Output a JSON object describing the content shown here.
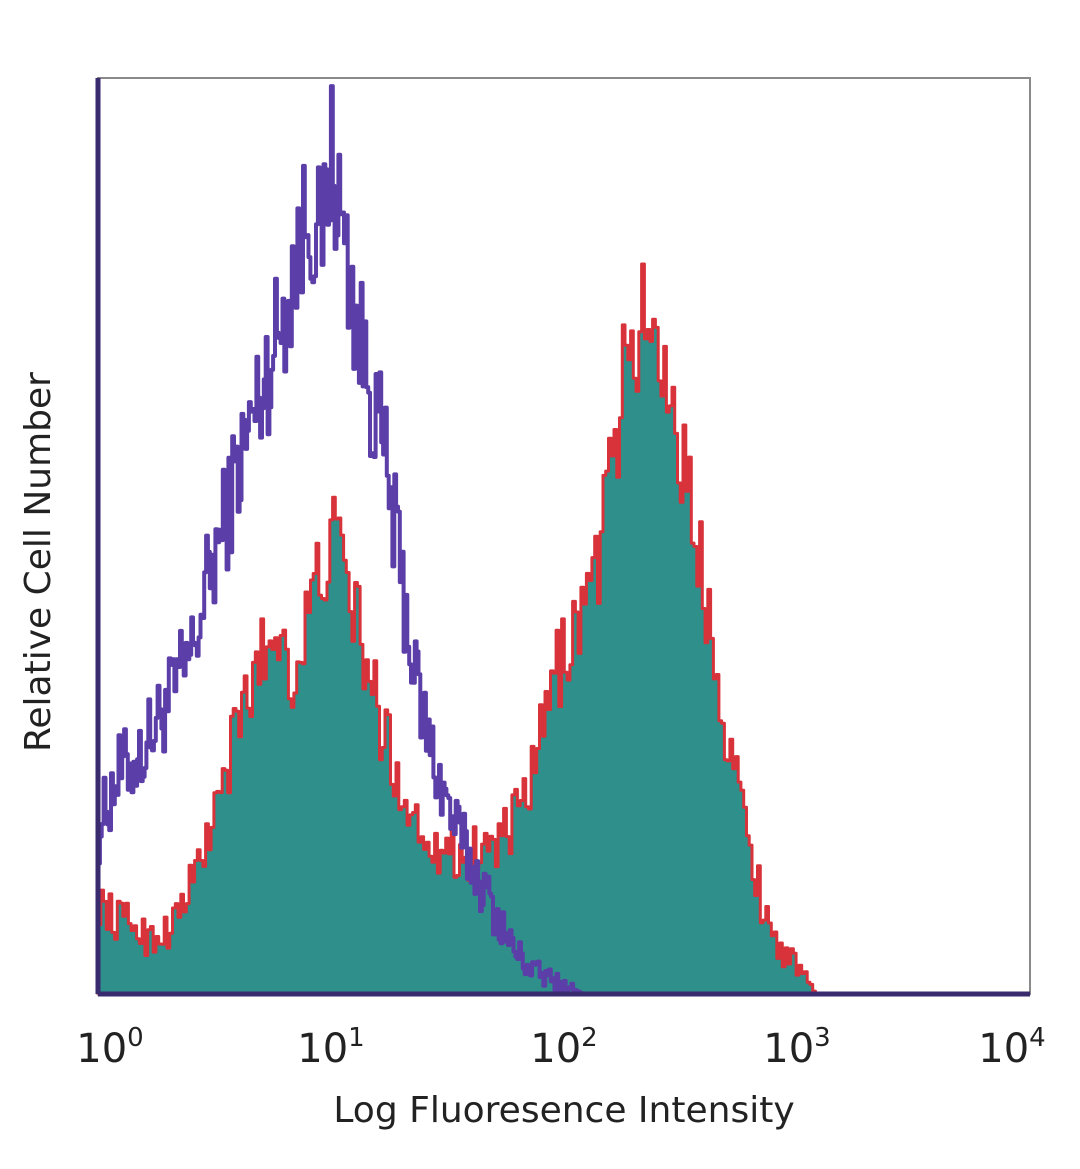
{
  "chart_data": {
    "type": "area",
    "title": "",
    "xlabel": "Log Fluoresence Intensity",
    "ylabel": "Relative Cell Number",
    "x_scale": "log",
    "xlim": [
      1,
      10000
    ],
    "ylim": [
      0,
      100
    ],
    "x_ticks": [
      {
        "value": 1,
        "base": "10",
        "exp": "0"
      },
      {
        "value": 10,
        "base": "10",
        "exp": "1"
      },
      {
        "value": 100,
        "base": "10",
        "exp": "2"
      },
      {
        "value": 1000,
        "base": "10",
        "exp": "3"
      },
      {
        "value": 10000,
        "base": "10",
        "exp": "4"
      }
    ],
    "grid": false,
    "legend": "none",
    "colors": {
      "purple": "#5b3ea8",
      "red_line": "#d8323a",
      "teal_fill": "#2f8f8b",
      "axis": "#3a2a6e"
    },
    "series": [
      {
        "style": "outline",
        "color": "#5b3ea8",
        "points": [
          [
            1.0,
            18
          ],
          [
            1.2,
            24
          ],
          [
            1.5,
            26
          ],
          [
            1.8,
            30
          ],
          [
            2.0,
            32
          ],
          [
            2.5,
            37
          ],
          [
            3.0,
            46
          ],
          [
            3.5,
            52
          ],
          [
            4.0,
            58
          ],
          [
            5.0,
            66
          ],
          [
            6.0,
            73
          ],
          [
            7.0,
            80
          ],
          [
            8.0,
            86
          ],
          [
            9.0,
            82
          ],
          [
            10.0,
            92
          ],
          [
            11.0,
            84
          ],
          [
            12.0,
            78
          ],
          [
            13.0,
            72
          ],
          [
            15.0,
            65
          ],
          [
            17.0,
            58
          ],
          [
            20.0,
            45
          ],
          [
            23.0,
            34
          ],
          [
            27.0,
            26
          ],
          [
            32.0,
            20
          ],
          [
            40.0,
            14
          ],
          [
            50.0,
            9
          ],
          [
            60.0,
            5
          ],
          [
            70.0,
            3
          ],
          [
            80.0,
            2
          ],
          [
            100.0,
            1
          ],
          [
            120.0,
            0
          ]
        ]
      },
      {
        "style": "filled",
        "color": "#2f8f8b",
        "outline_color": "#d8323a",
        "points": [
          [
            1.0,
            10
          ],
          [
            1.2,
            8
          ],
          [
            1.4,
            8
          ],
          [
            1.6,
            6
          ],
          [
            2.0,
            7
          ],
          [
            2.5,
            12
          ],
          [
            3.0,
            18
          ],
          [
            3.5,
            24
          ],
          [
            4.0,
            30
          ],
          [
            5.0,
            37
          ],
          [
            6.0,
            40
          ],
          [
            7.0,
            34
          ],
          [
            8.0,
            42
          ],
          [
            10.0,
            50
          ],
          [
            12.0,
            44
          ],
          [
            14.0,
            36
          ],
          [
            16.0,
            30
          ],
          [
            18.0,
            26
          ],
          [
            20.0,
            22
          ],
          [
            24.0,
            18
          ],
          [
            30.0,
            16
          ],
          [
            36.0,
            15
          ],
          [
            45.0,
            16
          ],
          [
            55.0,
            17
          ],
          [
            65.0,
            20
          ],
          [
            75.0,
            25
          ],
          [
            85.0,
            32
          ],
          [
            100.0,
            38
          ],
          [
            120.0,
            42
          ],
          [
            140.0,
            48
          ],
          [
            160.0,
            58
          ],
          [
            180.0,
            68
          ],
          [
            200.0,
            72
          ],
          [
            230.0,
            74
          ],
          [
            260.0,
            70
          ],
          [
            300.0,
            62
          ],
          [
            350.0,
            52
          ],
          [
            400.0,
            44
          ],
          [
            450.0,
            36
          ],
          [
            500.0,
            28
          ],
          [
            600.0,
            18
          ],
          [
            700.0,
            10
          ],
          [
            800.0,
            6
          ],
          [
            900.0,
            4
          ],
          [
            1000.0,
            3
          ],
          [
            1100.0,
            1
          ],
          [
            1200.0,
            0
          ]
        ]
      }
    ]
  }
}
